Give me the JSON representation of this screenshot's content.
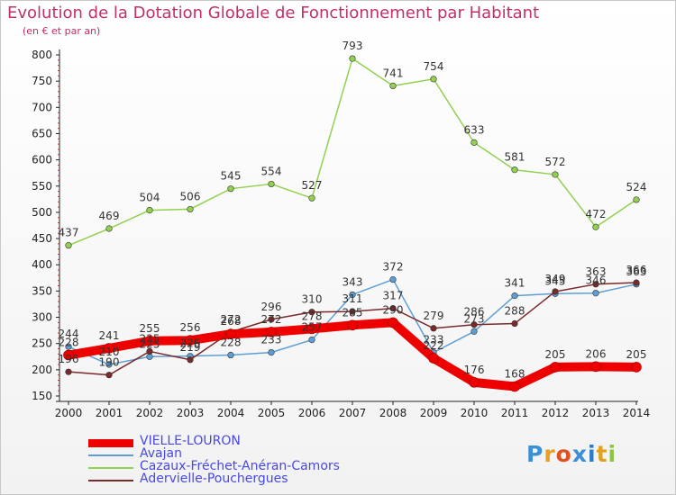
{
  "title": "Evolution de la Dotation Globale de Fonctionnement par Habitant",
  "subtitle": "(en € et par an)",
  "logo": "Proxiti",
  "chart_data": {
    "type": "line",
    "categories": [
      "2000",
      "2001",
      "2002",
      "2003",
      "2004",
      "2005",
      "2006",
      "2007",
      "2008",
      "2009",
      "2010",
      "2011",
      "2012",
      "2013",
      "2014"
    ],
    "y_ticks": [
      "150",
      "200",
      "250",
      "300",
      "350",
      "400",
      "450",
      "500",
      "550",
      "600",
      "650",
      "700",
      "750",
      "800"
    ],
    "ylim": [
      150,
      800
    ],
    "grid": false,
    "legend_position": "bottom",
    "series": [
      {
        "name": "VIELLE-LOURON",
        "color": "#ee0000",
        "values": [
          228,
          241,
          255,
          256,
          268,
          272,
          278,
          285,
          290,
          222,
          176,
          168,
          205,
          206,
          205
        ],
        "labels": [
          "228",
          "241",
          "255",
          "256",
          "268",
          "272",
          "278",
          "285",
          "290",
          "222",
          "176",
          "168",
          "205",
          "206",
          "205"
        ],
        "width": 10,
        "show_labels": true
      },
      {
        "name": "Avajan",
        "color": "#5d9fd5",
        "values": [
          244,
          210,
          225,
          226,
          228,
          233,
          257,
          343,
          372,
          233,
          273,
          341,
          345,
          346,
          363
        ],
        "labels": [
          "244",
          "210",
          "225",
          "226",
          "228",
          "233",
          "257",
          "343",
          "372",
          "233",
          "273",
          "341",
          "345",
          "346",
          "363"
        ],
        "width": 1.5,
        "show_labels": true
      },
      {
        "name": "Cazaux-Fréchet-Anéran-Camors",
        "color": "#92d050",
        "values": [
          437,
          469,
          504,
          506,
          545,
          554,
          527,
          793,
          741,
          754,
          633,
          581,
          572,
          472,
          524
        ],
        "labels": [
          "437",
          "469",
          "504",
          "506",
          "545",
          "554",
          "527",
          "793",
          "741",
          "754",
          "633",
          "581",
          "572",
          "472",
          "524"
        ],
        "width": 1.5,
        "show_labels": true
      },
      {
        "name": "Adervielle-Pouchergues",
        "color": "#7a2a2a",
        "values": [
          196,
          190,
          235,
          219,
          272,
          296,
          310,
          311,
          317,
          279,
          286,
          288,
          349,
          363,
          366
        ],
        "labels": [
          "196",
          "190",
          "235",
          "219",
          "272",
          "296",
          "310",
          "311",
          "317",
          "279",
          "286",
          "288",
          "349",
          "363",
          "366"
        ],
        "width": 1.5,
        "show_labels": true
      }
    ]
  }
}
